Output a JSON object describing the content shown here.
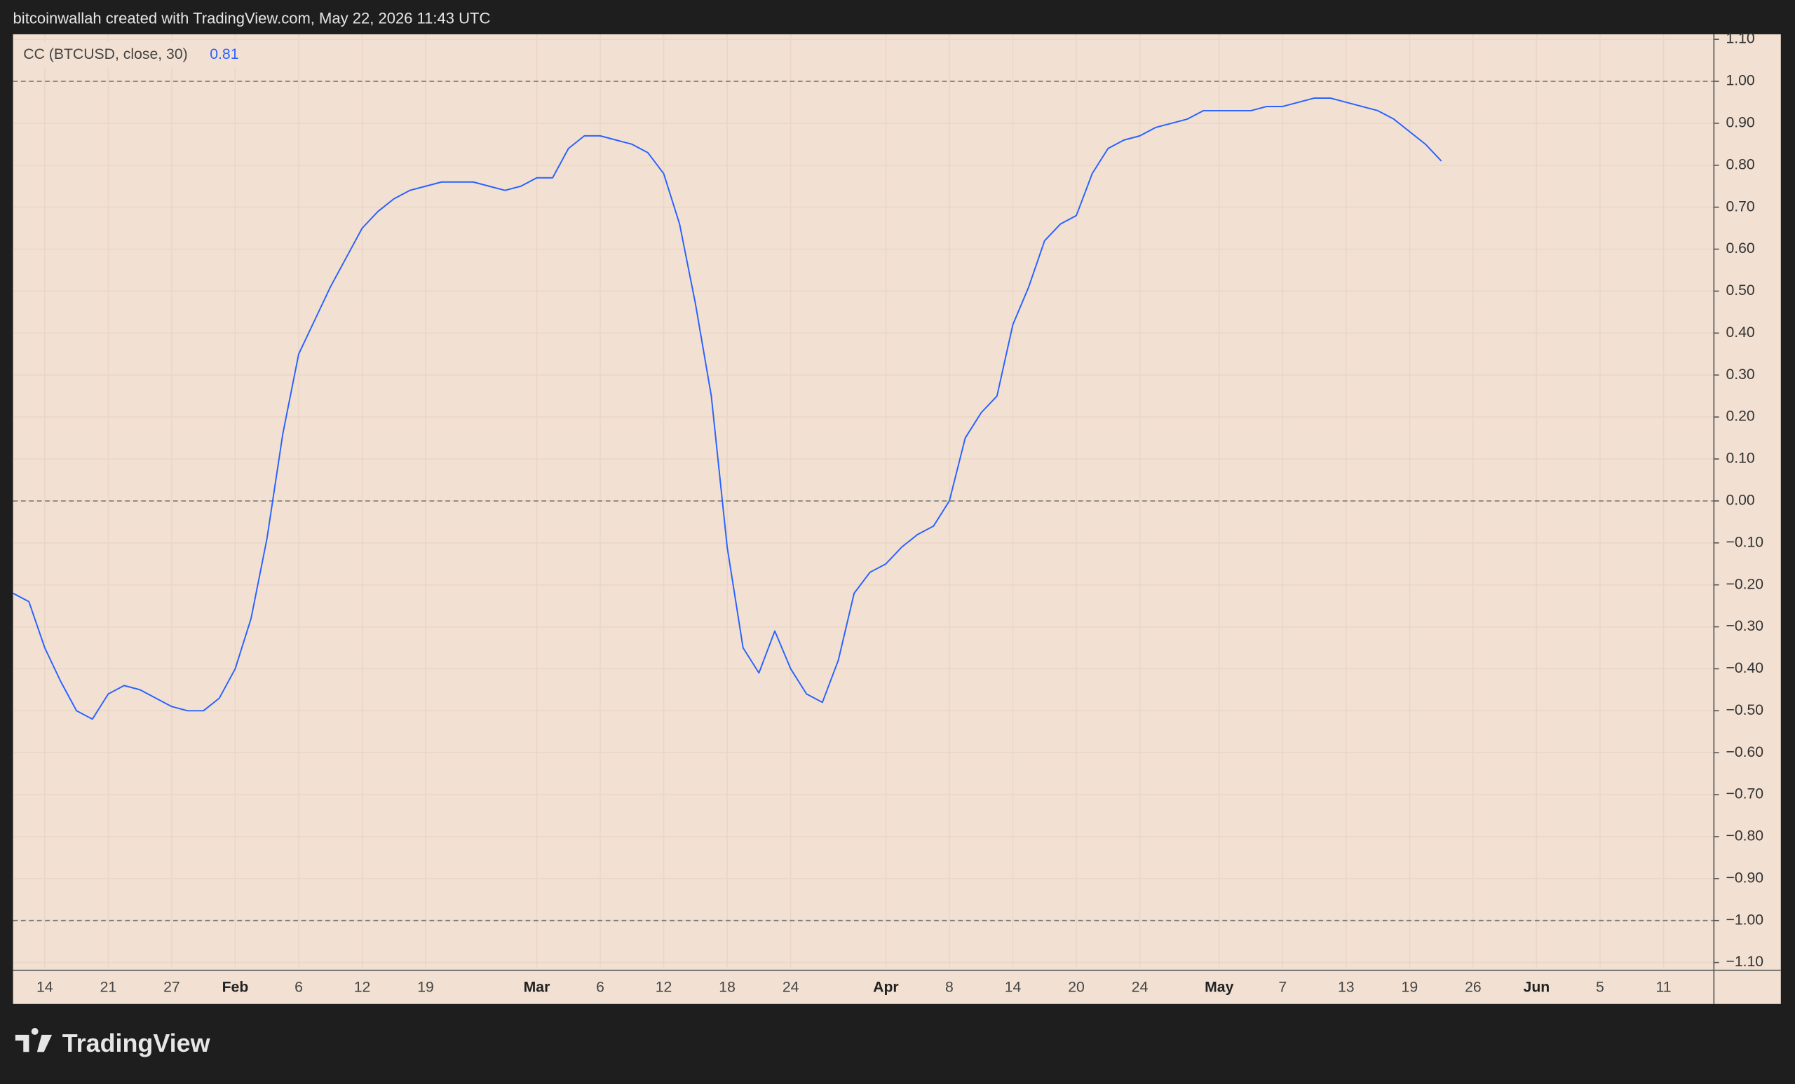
{
  "header": "bitcoinwallah created with TradingView.com, May 22, 2026 11:43 UTC",
  "footer": "TradingView",
  "chart_data": {
    "type": "line",
    "title": "CC (BTCUSD, close, 30)",
    "categories": [
      null,
      null,
      "14",
      null,
      null,
      null,
      "21",
      null,
      null,
      null,
      "27",
      null,
      null,
      null,
      "Feb",
      null,
      null,
      null,
      "6",
      null,
      null,
      null,
      "12",
      null,
      null,
      null,
      "19",
      null,
      null,
      null,
      null,
      null,
      null,
      "Mar",
      null,
      null,
      null,
      "6",
      null,
      null,
      null,
      "12",
      null,
      null,
      null,
      "18",
      null,
      null,
      null,
      "24",
      null,
      null,
      null,
      null,
      null,
      "Apr",
      null,
      null,
      null,
      "8",
      null,
      null,
      null,
      "14",
      null,
      null,
      null,
      "20",
      null,
      null,
      null,
      "24",
      null,
      null,
      null,
      null,
      "May",
      null,
      null,
      null,
      "7",
      null,
      null,
      null,
      "13",
      null,
      null,
      null,
      "19",
      null,
      null,
      null,
      "26",
      null,
      null,
      null,
      "Jun",
      null,
      null,
      null,
      "5",
      null,
      null,
      null,
      "11",
      null,
      null,
      null
    ],
    "series": [
      {
        "name": "CC",
        "color": "#2962ff",
        "values": [
          -0.22,
          -0.24,
          -0.35,
          -0.43,
          -0.5,
          -0.52,
          -0.46,
          -0.44,
          -0.45,
          -0.47,
          -0.49,
          -0.5,
          -0.5,
          -0.47,
          -0.4,
          -0.28,
          -0.09,
          0.16,
          0.35,
          0.43,
          0.51,
          0.58,
          0.65,
          0.69,
          0.72,
          0.74,
          0.75,
          0.76,
          0.76,
          0.76,
          0.75,
          0.74,
          0.75,
          0.77,
          0.77,
          0.84,
          0.87,
          0.87,
          0.86,
          0.85,
          0.83,
          0.78,
          0.66,
          0.47,
          0.25,
          -0.11,
          -0.35,
          -0.41,
          -0.31,
          -0.4,
          -0.46,
          -0.48,
          -0.38,
          -0.22,
          -0.17,
          -0.15,
          -0.11,
          -0.08,
          -0.06,
          0.0,
          0.15,
          0.21,
          0.25,
          0.42,
          0.51,
          0.62,
          0.66,
          0.68,
          0.78,
          0.84,
          0.86,
          0.87,
          0.89,
          0.9,
          0.91,
          0.93,
          0.93,
          0.93,
          0.93,
          0.94,
          0.94,
          0.95,
          0.96,
          0.96,
          0.95,
          0.94,
          0.93,
          0.91,
          0.88,
          0.85,
          0.81,
          null,
          null,
          null,
          null,
          null,
          null,
          null,
          null,
          null,
          null,
          null,
          null,
          null,
          null,
          null,
          null,
          null
        ]
      }
    ],
    "ylim": [
      -1.117,
      1.112
    ],
    "yticks": [
      {
        "value": 1.1,
        "label": "1.10"
      },
      {
        "value": 1.0,
        "label": "1.00"
      },
      {
        "value": 0.9,
        "label": "0.90"
      },
      {
        "value": 0.8,
        "label": "0.80"
      },
      {
        "value": 0.7,
        "label": "0.70"
      },
      {
        "value": 0.6,
        "label": "0.60"
      },
      {
        "value": 0.5,
        "label": "0.50"
      },
      {
        "value": 0.4,
        "label": "0.40"
      },
      {
        "value": 0.3,
        "label": "0.30"
      },
      {
        "value": 0.2,
        "label": "0.20"
      },
      {
        "value": 0.1,
        "label": "0.10"
      },
      {
        "value": 0.0,
        "label": "0.00"
      },
      {
        "value": -0.1,
        "label": "−0.10"
      },
      {
        "value": -0.2,
        "label": "−0.20"
      },
      {
        "value": -0.3,
        "label": "−0.30"
      },
      {
        "value": -0.4,
        "label": "−0.40"
      },
      {
        "value": -0.5,
        "label": "−0.50"
      },
      {
        "value": -0.6,
        "label": "−0.60"
      },
      {
        "value": -0.7,
        "label": "−0.70"
      },
      {
        "value": -0.8,
        "label": "−0.80"
      },
      {
        "value": -0.9,
        "label": "−0.90"
      },
      {
        "value": -1.0,
        "label": "−1.00"
      },
      {
        "value": -1.1,
        "label": "−1.10"
      }
    ],
    "levels": [
      1,
      0,
      -1
    ],
    "grid": true
  }
}
